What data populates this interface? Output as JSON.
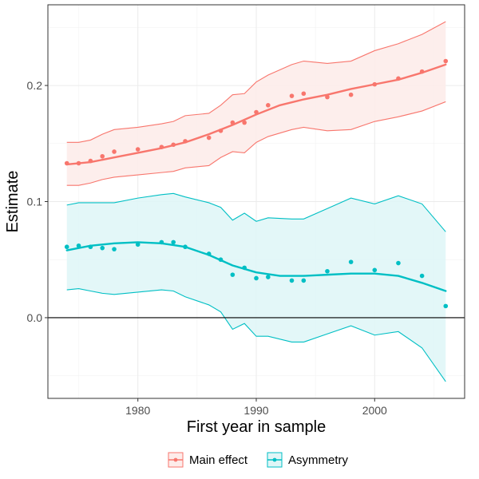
{
  "chart_data": {
    "type": "scatter",
    "title": "",
    "xlabel": "First year in sample",
    "ylabel": "Estimate",
    "xlim": [
      1972.4,
      2007.6
    ],
    "ylim": [
      -0.0695,
      0.2695
    ],
    "x_ticks": [
      1980,
      1990,
      2000
    ],
    "x_tick_labels": [
      "1980",
      "1990",
      "2000"
    ],
    "y_ticks": [
      0.0,
      0.1,
      0.2
    ],
    "y_tick_labels": [
      "0.0",
      "0.1",
      "0.2"
    ],
    "grid": true,
    "reference_line": 0.0,
    "legend_position": "bottom",
    "series": [
      {
        "name": "Main effect",
        "color": "#F8766D",
        "band_fill": "#FDECEA",
        "points": [
          [
            1974,
            0.133
          ],
          [
            1975,
            0.133
          ],
          [
            1976,
            0.135
          ],
          [
            1977,
            0.139
          ],
          [
            1978,
            0.143
          ],
          [
            1980,
            0.145
          ],
          [
            1982,
            0.147
          ],
          [
            1983,
            0.149
          ],
          [
            1984,
            0.152
          ],
          [
            1986,
            0.155
          ],
          [
            1987,
            0.161
          ],
          [
            1988,
            0.168
          ],
          [
            1989,
            0.168
          ],
          [
            1990,
            0.177
          ],
          [
            1991,
            0.183
          ],
          [
            1993,
            0.191
          ],
          [
            1994,
            0.193
          ],
          [
            1996,
            0.19
          ],
          [
            1998,
            0.192
          ],
          [
            2000,
            0.201
          ],
          [
            2002,
            0.206
          ],
          [
            2004,
            0.212
          ],
          [
            2006,
            0.221
          ]
        ],
        "fit": [
          [
            1974,
            0.132
          ],
          [
            1976,
            0.134
          ],
          [
            1978,
            0.138
          ],
          [
            1980,
            0.142
          ],
          [
            1982,
            0.146
          ],
          [
            1984,
            0.151
          ],
          [
            1986,
            0.158
          ],
          [
            1988,
            0.166
          ],
          [
            1990,
            0.175
          ],
          [
            1992,
            0.183
          ],
          [
            1994,
            0.188
          ],
          [
            1996,
            0.192
          ],
          [
            1998,
            0.197
          ],
          [
            2000,
            0.201
          ],
          [
            2002,
            0.205
          ],
          [
            2004,
            0.211
          ],
          [
            2006,
            0.218
          ]
        ],
        "upper": [
          [
            1974,
            0.151
          ],
          [
            1975,
            0.151
          ],
          [
            1976,
            0.153
          ],
          [
            1977,
            0.158
          ],
          [
            1978,
            0.162
          ],
          [
            1980,
            0.164
          ],
          [
            1982,
            0.167
          ],
          [
            1983,
            0.169
          ],
          [
            1984,
            0.174
          ],
          [
            1986,
            0.176
          ],
          [
            1987,
            0.183
          ],
          [
            1988,
            0.192
          ],
          [
            1989,
            0.193
          ],
          [
            1990,
            0.203
          ],
          [
            1991,
            0.209
          ],
          [
            1993,
            0.218
          ],
          [
            1994,
            0.221
          ],
          [
            1996,
            0.219
          ],
          [
            1998,
            0.221
          ],
          [
            2000,
            0.23
          ],
          [
            2002,
            0.236
          ],
          [
            2004,
            0.244
          ],
          [
            2006,
            0.255
          ]
        ],
        "lower": [
          [
            1974,
            0.114
          ],
          [
            1975,
            0.114
          ],
          [
            1976,
            0.116
          ],
          [
            1977,
            0.119
          ],
          [
            1978,
            0.121
          ],
          [
            1980,
            0.123
          ],
          [
            1982,
            0.125
          ],
          [
            1983,
            0.126
          ],
          [
            1984,
            0.129
          ],
          [
            1986,
            0.131
          ],
          [
            1987,
            0.138
          ],
          [
            1988,
            0.143
          ],
          [
            1989,
            0.142
          ],
          [
            1990,
            0.151
          ],
          [
            1991,
            0.156
          ],
          [
            1993,
            0.162
          ],
          [
            1994,
            0.164
          ],
          [
            1996,
            0.161
          ],
          [
            1998,
            0.162
          ],
          [
            2000,
            0.169
          ],
          [
            2002,
            0.173
          ],
          [
            2004,
            0.178
          ],
          [
            2006,
            0.186
          ]
        ]
      },
      {
        "name": "Asymmetry",
        "color": "#00BFC4",
        "band_fill": "#E0F6F7",
        "points": [
          [
            1974,
            0.061
          ],
          [
            1975,
            0.062
          ],
          [
            1976,
            0.061
          ],
          [
            1977,
            0.06
          ],
          [
            1978,
            0.059
          ],
          [
            1980,
            0.063
          ],
          [
            1982,
            0.065
          ],
          [
            1983,
            0.065
          ],
          [
            1984,
            0.061
          ],
          [
            1986,
            0.055
          ],
          [
            1987,
            0.05
          ],
          [
            1988,
            0.037
          ],
          [
            1989,
            0.043
          ],
          [
            1990,
            0.034
          ],
          [
            1991,
            0.035
          ],
          [
            1993,
            0.032
          ],
          [
            1994,
            0.032
          ],
          [
            1996,
            0.04
          ],
          [
            1998,
            0.048
          ],
          [
            2000,
            0.041
          ],
          [
            2002,
            0.047
          ],
          [
            2004,
            0.036
          ],
          [
            2006,
            0.01
          ]
        ],
        "fit": [
          [
            1974,
            0.058
          ],
          [
            1976,
            0.062
          ],
          [
            1978,
            0.064
          ],
          [
            1980,
            0.065
          ],
          [
            1982,
            0.064
          ],
          [
            1984,
            0.061
          ],
          [
            1986,
            0.054
          ],
          [
            1988,
            0.045
          ],
          [
            1990,
            0.039
          ],
          [
            1992,
            0.036
          ],
          [
            1994,
            0.036
          ],
          [
            1996,
            0.037
          ],
          [
            1998,
            0.038
          ],
          [
            2000,
            0.038
          ],
          [
            2002,
            0.036
          ],
          [
            2004,
            0.03
          ],
          [
            2006,
            0.023
          ]
        ],
        "upper": [
          [
            1974,
            0.097
          ],
          [
            1975,
            0.099
          ],
          [
            1976,
            0.099
          ],
          [
            1977,
            0.099
          ],
          [
            1978,
            0.099
          ],
          [
            1980,
            0.103
          ],
          [
            1982,
            0.106
          ],
          [
            1983,
            0.107
          ],
          [
            1984,
            0.104
          ],
          [
            1986,
            0.099
          ],
          [
            1987,
            0.095
          ],
          [
            1988,
            0.084
          ],
          [
            1989,
            0.09
          ],
          [
            1990,
            0.083
          ],
          [
            1991,
            0.086
          ],
          [
            1993,
            0.085
          ],
          [
            1994,
            0.085
          ],
          [
            1996,
            0.094
          ],
          [
            1998,
            0.103
          ],
          [
            2000,
            0.098
          ],
          [
            2002,
            0.105
          ],
          [
            2004,
            0.098
          ],
          [
            2006,
            0.074
          ]
        ],
        "lower": [
          [
            1974,
            0.024
          ],
          [
            1975,
            0.025
          ],
          [
            1976,
            0.023
          ],
          [
            1977,
            0.021
          ],
          [
            1978,
            0.02
          ],
          [
            1980,
            0.022
          ],
          [
            1982,
            0.024
          ],
          [
            1983,
            0.023
          ],
          [
            1984,
            0.018
          ],
          [
            1986,
            0.011
          ],
          [
            1987,
            0.005
          ],
          [
            1988,
            -0.01
          ],
          [
            1989,
            -0.005
          ],
          [
            1990,
            -0.016
          ],
          [
            1991,
            -0.016
          ],
          [
            1993,
            -0.021
          ],
          [
            1994,
            -0.021
          ],
          [
            1996,
            -0.014
          ],
          [
            1998,
            -0.007
          ],
          [
            2000,
            -0.015
          ],
          [
            2002,
            -0.012
          ],
          [
            2004,
            -0.026
          ],
          [
            2006,
            -0.055
          ]
        ]
      }
    ]
  }
}
